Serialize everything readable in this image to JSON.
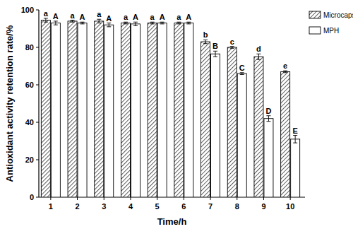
{
  "chart_data": {
    "type": "bar",
    "x_label": "Time/h",
    "y_label": "Antioxidant activity retention rate/%",
    "categories": [
      "1",
      "2",
      "3",
      "4",
      "5",
      "6",
      "7",
      "8",
      "9",
      "10"
    ],
    "series": [
      {
        "name": "Microcapsules",
        "color": "#333333",
        "values": [
          94.5,
          94,
          94,
          93,
          93,
          93,
          83,
          80,
          75,
          67
        ],
        "errors": [
          1,
          0.5,
          1,
          0.5,
          0.5,
          0.5,
          1,
          0.5,
          1.5,
          0.5
        ],
        "letters": [
          "a",
          "a",
          "a",
          "a",
          "a",
          "a",
          "b",
          "c",
          "d",
          "e"
        ]
      },
      {
        "name": "MPH",
        "color": "#ffffff",
        "values": [
          93,
          93,
          92,
          92.5,
          93,
          93,
          76.5,
          66,
          42,
          31
        ],
        "errors": [
          1,
          0.5,
          1,
          1,
          0.5,
          0.5,
          1.5,
          0.5,
          1.5,
          2
        ],
        "letters": [
          "A",
          "A",
          "A",
          "A",
          "A",
          "A",
          "B",
          "C",
          "D",
          "E"
        ]
      }
    ],
    "ylim": [
      0,
      100
    ],
    "yticks": [
      0,
      20,
      40,
      60,
      80,
      100
    ],
    "grid": false,
    "legend": "top-right"
  }
}
